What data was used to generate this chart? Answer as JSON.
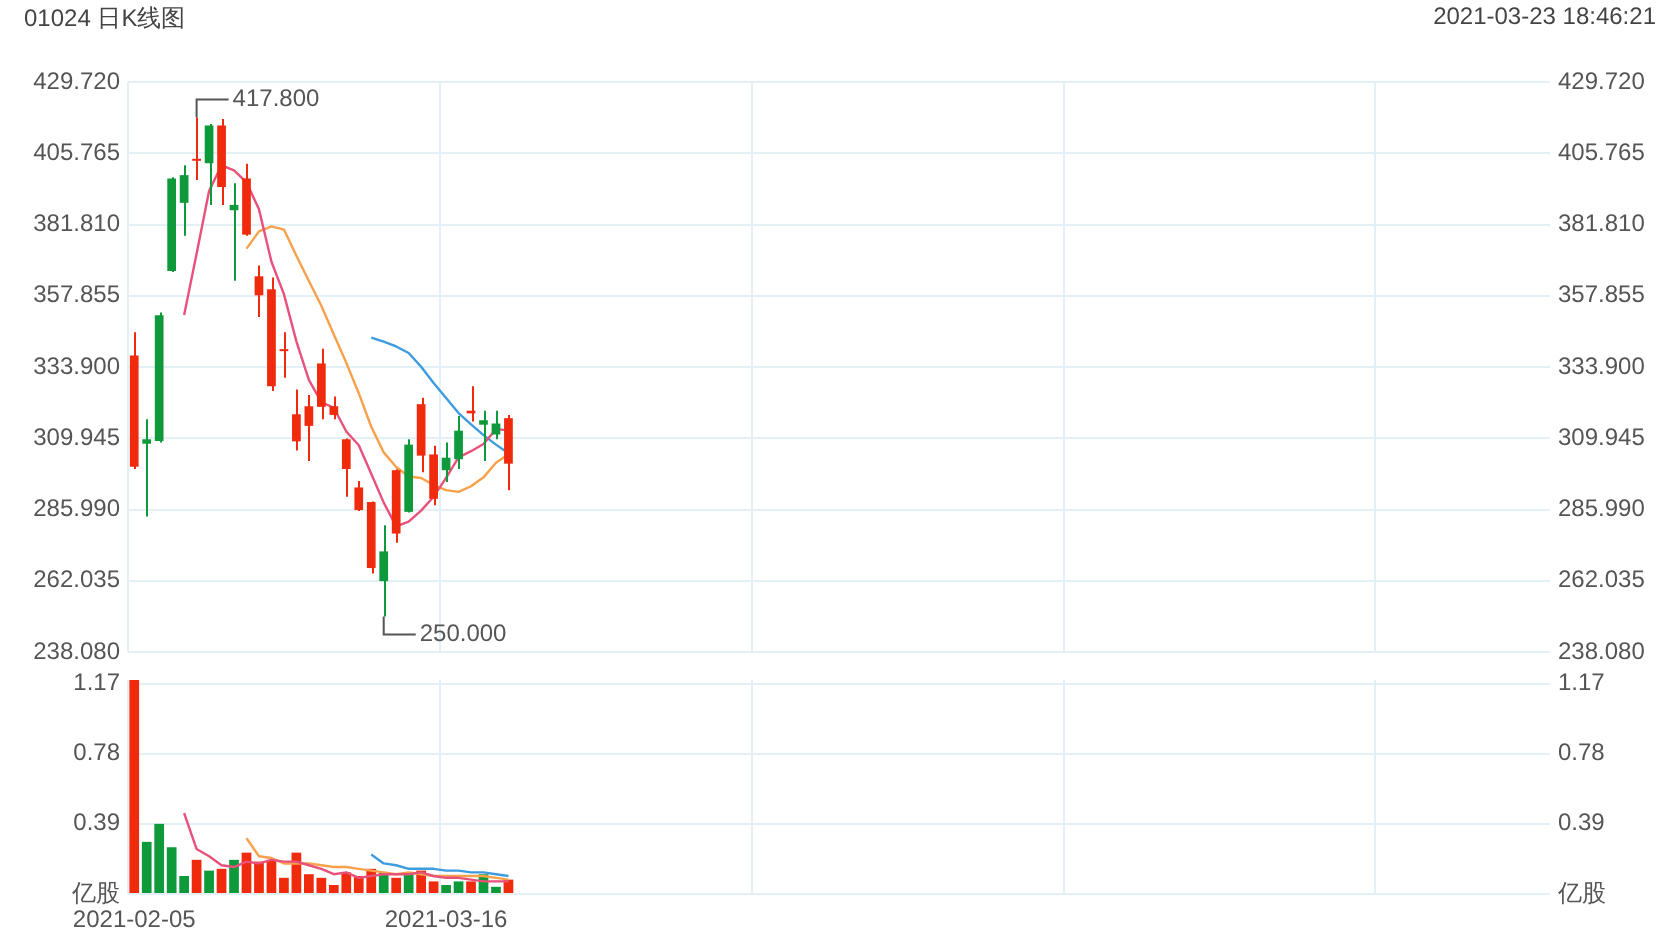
{
  "chart_data": [
    {
      "type": "candlestick",
      "title": "01024 日K线图",
      "subtitle": "2021-03-23 18:46:21",
      "categories": [
        "2021-02-05",
        null,
        null,
        null,
        null,
        null,
        null,
        null,
        null,
        null,
        null,
        null,
        null,
        null,
        null,
        null,
        null,
        null,
        null,
        null,
        null,
        null,
        null,
        null,
        null,
        "2021-03-16",
        null,
        null,
        null,
        null,
        null,
        null,
        null,
        null,
        null,
        null,
        null,
        null,
        null,
        null,
        null,
        null,
        null,
        null,
        null,
        null,
        null,
        null,
        null,
        null,
        null,
        null,
        null,
        null,
        null,
        null,
        null,
        null,
        null,
        null,
        null,
        null,
        null,
        null,
        null,
        null,
        null,
        null,
        null,
        null,
        null,
        null,
        null,
        null,
        null,
        null,
        null,
        null,
        null,
        null,
        null,
        null,
        null,
        null,
        null,
        null,
        null,
        null,
        null,
        null,
        null,
        null,
        null,
        null,
        null,
        null,
        null,
        null,
        null,
        null,
        null,
        null,
        null,
        null,
        null,
        null,
        null,
        null,
        null,
        null,
        null,
        null,
        null,
        null
      ],
      "ohlc": [
        [
          337.8,
          345.6,
          299.6,
          300.4
        ],
        [
          308.1,
          316.3,
          283.6,
          309.6
        ],
        [
          309.0,
          352.2,
          308.5,
          351.3
        ],
        [
          366.2,
          397.7,
          365.8,
          397.3
        ],
        [
          389.1,
          401.7,
          378.0,
          398.4
        ],
        [
          403.9,
          417.8,
          396.8,
          403.5
        ],
        [
          402.4,
          415.6,
          388.4,
          415.1
        ],
        [
          415.1,
          417.3,
          388.4,
          394.4
        ],
        [
          386.6,
          395.7,
          362.9,
          388.4
        ],
        [
          397.3,
          402.2,
          378.0,
          378.4
        ],
        [
          364.4,
          368.0,
          350.7,
          358.0
        ],
        [
          360.0,
          364.0,
          325.8,
          327.4
        ],
        [
          339.9,
          345.6,
          330.3,
          339.7
        ],
        [
          318.0,
          326.3,
          305.8,
          308.9
        ],
        [
          320.7,
          324.5,
          302.3,
          314.1
        ],
        [
          335.1,
          340.0,
          316.3,
          320.5
        ],
        [
          320.7,
          324.0,
          316.3,
          317.8
        ],
        [
          309.6,
          309.9,
          290.3,
          299.6
        ],
        [
          293.4,
          295.6,
          285.5,
          285.8
        ],
        [
          288.5,
          288.7,
          264.5,
          266.3
        ],
        [
          261.9,
          280.7,
          250.0,
          271.9
        ],
        [
          299.2,
          299.5,
          274.8,
          277.9
        ],
        [
          285.2,
          309.6,
          285.0,
          307.8
        ],
        [
          321.4,
          323.6,
          298.5,
          304.1
        ],
        [
          304.5,
          307.4,
          287.4,
          289.6
        ],
        [
          299.2,
          308.5,
          295.2,
          303.4
        ],
        [
          302.9,
          317.4,
          299.6,
          312.5
        ],
        [
          319.2,
          327.4,
          315.6,
          318.3
        ],
        [
          314.5,
          319.2,
          302.3,
          316.0
        ],
        [
          311.2,
          319.2,
          309.6,
          314.9
        ],
        [
          316.7,
          317.8,
          292.5,
          301.4
        ],
        null,
        null,
        null,
        null,
        null,
        null,
        null,
        null,
        null,
        null,
        null,
        null,
        null,
        null,
        null,
        null,
        null,
        null,
        null,
        null,
        null,
        null,
        null,
        null,
        null,
        null,
        null,
        null,
        null,
        null,
        null,
        null,
        null,
        null,
        null,
        null,
        null,
        null,
        null,
        null,
        null,
        null,
        null,
        null,
        null,
        null,
        null,
        null,
        null,
        null,
        null,
        null,
        null,
        null,
        null,
        null,
        null,
        null,
        null,
        null,
        null,
        null,
        null,
        null,
        null,
        null,
        null,
        null,
        null,
        null,
        null,
        null,
        null,
        null,
        null,
        null,
        null,
        null,
        null,
        null,
        null,
        null,
        null
      ],
      "colors": [
        "#f02a0c",
        "#0e9a3a",
        "#0e9a3a",
        "#0e9a3a",
        "#0e9a3a",
        "#f02a0c",
        "#0e9a3a",
        "#f02a0c",
        "#0e9a3a",
        "#f02a0c",
        "#f02a0c",
        "#f02a0c",
        "#f02a0c",
        "#f02a0c",
        "#f02a0c",
        "#f02a0c",
        "#f02a0c",
        "#f02a0c",
        "#f02a0c",
        "#f02a0c",
        "#0e9a3a",
        "#f02a0c",
        "#0e9a3a",
        "#f02a0c",
        "#f02a0c",
        "#0e9a3a",
        "#0e9a3a",
        "#f02a0c",
        "#0e9a3a",
        "#0e9a3a",
        "#f02a0c",
        null,
        null,
        null,
        null,
        null,
        null,
        null,
        null,
        null,
        null,
        null,
        null,
        null,
        null,
        null,
        null,
        null,
        null,
        null,
        null,
        null,
        null,
        null,
        null,
        null,
        null,
        null,
        null,
        null,
        null,
        null,
        null,
        null,
        null,
        null,
        null,
        null,
        null,
        null,
        null,
        null,
        null,
        null,
        null,
        null,
        null,
        null,
        null,
        null,
        null,
        null,
        null,
        null,
        null,
        null,
        null,
        null,
        null,
        null,
        null,
        null,
        null,
        null,
        null,
        null,
        null,
        null,
        null,
        null,
        null,
        null,
        null,
        null,
        null,
        null,
        null,
        null,
        null,
        null,
        null,
        null,
        null,
        null
      ],
      "series": [
        {
          "type": "line",
          "color": "#e8517a",
          "values": [
            null,
            null,
            null,
            null,
            351.4,
            372.0,
            393.1,
            401.7,
            400.0,
            396.0,
            386.9,
            369.3,
            358.4,
            342.5,
            329.6,
            322.1,
            320.2,
            312.2,
            307.6,
            298.0,
            288.3,
            280.3,
            281.9,
            285.6,
            290.3,
            296.6,
            303.5,
            305.6,
            308.0,
            313.0,
            312.6,
            null,
            null,
            null,
            null,
            null,
            null,
            null,
            null,
            null,
            null,
            null,
            null,
            null,
            null,
            null,
            null,
            null,
            null,
            null,
            null,
            null,
            null,
            null,
            null,
            null,
            null,
            null,
            null,
            null,
            null,
            null,
            null,
            null,
            null,
            null,
            null,
            null,
            null,
            null,
            null,
            null,
            null,
            null,
            null,
            null,
            null,
            null,
            null,
            null,
            null,
            null,
            null,
            null,
            null,
            null,
            null,
            null,
            null,
            null,
            null,
            null,
            null,
            null,
            null,
            null,
            null,
            null,
            null,
            null,
            null,
            null,
            null,
            null,
            null,
            null,
            null,
            null,
            null,
            null,
            null,
            null,
            null,
            null
          ]
        },
        {
          "type": "line",
          "color": "#f7a14b",
          "values": [
            null,
            null,
            null,
            null,
            null,
            null,
            null,
            null,
            null,
            373.7,
            379.5,
            381.2,
            380.1,
            371.3,
            362.8,
            354.5,
            344.8,
            335.3,
            325.1,
            313.8,
            305.2,
            300.3,
            297.1,
            296.6,
            294.2,
            292.5,
            291.9,
            293.8,
            296.8,
            301.7,
            304.6,
            null,
            null,
            null,
            null,
            null,
            null,
            null,
            null,
            null,
            null,
            null,
            null,
            null,
            null,
            null,
            null,
            null,
            null,
            null,
            null,
            null,
            null,
            null,
            null,
            null,
            null,
            null,
            null,
            null,
            null,
            null,
            null,
            null,
            null,
            null,
            null,
            null,
            null,
            null,
            null,
            null,
            null,
            null,
            null,
            null,
            null,
            null,
            null,
            null,
            null,
            null,
            null,
            null,
            null,
            null,
            null,
            null,
            null,
            null,
            null,
            null,
            null,
            null,
            null,
            null,
            null,
            null,
            null,
            null,
            null,
            null,
            null,
            null,
            null,
            null,
            null,
            null,
            null,
            null,
            null,
            null,
            null,
            null
          ]
        },
        {
          "type": "line",
          "color": "#3d9be0",
          "values": [
            null,
            null,
            null,
            null,
            null,
            null,
            null,
            null,
            null,
            null,
            null,
            null,
            null,
            null,
            null,
            null,
            null,
            null,
            null,
            343.8,
            342.4,
            340.8,
            338.6,
            334.0,
            328.5,
            323.5,
            318.4,
            314.6,
            311.0,
            307.8,
            304.9,
            null,
            null,
            null,
            null,
            null,
            null,
            null,
            null,
            null,
            null,
            null,
            null,
            null,
            null,
            null,
            null,
            null,
            null,
            null,
            null,
            null,
            null,
            null,
            null,
            null,
            null,
            null,
            null,
            null,
            null,
            null,
            null,
            null,
            null,
            null,
            null,
            null,
            null,
            null,
            null,
            null,
            null,
            null,
            null,
            null,
            null,
            null,
            null,
            null,
            null,
            null,
            null,
            null,
            null,
            null,
            null,
            null,
            null,
            null,
            null,
            null,
            null,
            null,
            null,
            null,
            null,
            null,
            null,
            null,
            null,
            null,
            null,
            null,
            null,
            null,
            null,
            null,
            null,
            null,
            null,
            null,
            null,
            null
          ]
        }
      ],
      "ylim": [
        238.08,
        429.72
      ],
      "yticks": [
        {
          "value": 238.08,
          "label": "238.080"
        },
        262.035,
        {
          "value": 285.99,
          "label": "285.990"
        },
        309.945,
        {
          "value": 333.9,
          "label": "333.900"
        },
        357.855,
        {
          "value": 381.81,
          "label": "381.810"
        },
        405.765,
        {
          "value": 429.72,
          "label": "429.720"
        }
      ],
      "y2lim": [
        238.08,
        429.72
      ],
      "y2ticks": [
        {
          "value": 238.08,
          "label": "238.080"
        },
        262.035,
        {
          "value": 285.99,
          "label": "285.990"
        },
        309.945,
        {
          "value": 333.9,
          "label": "333.900"
        },
        357.855,
        {
          "value": 381.81,
          "label": "381.810"
        },
        405.765,
        {
          "value": 429.72,
          "label": "429.720"
        }
      ],
      "annotations": [
        "417.800",
        "250.000"
      ],
      "grid": true,
      "tick_labels": "y"
    },
    {
      "type": "bar",
      "categories": [
        "2021-02-05",
        null,
        null,
        null,
        null,
        null,
        null,
        null,
        null,
        null,
        null,
        null,
        null,
        null,
        null,
        null,
        null,
        null,
        null,
        null,
        null,
        null,
        null,
        null,
        null,
        "2021-03-16",
        null,
        null,
        null,
        null,
        null,
        null,
        null,
        null,
        null,
        null,
        null,
        null,
        null,
        null,
        null,
        null,
        null,
        null,
        null,
        null,
        null,
        null,
        null,
        null,
        null,
        null,
        null,
        null,
        null,
        null,
        null,
        null,
        null,
        null,
        null,
        null,
        null,
        null,
        null,
        null,
        null,
        null,
        null,
        null,
        null,
        null,
        null,
        null,
        null,
        null,
        null,
        null,
        null,
        null,
        null,
        null,
        null,
        null,
        null,
        null,
        null,
        null,
        null,
        null,
        null,
        null,
        null,
        null,
        null,
        null,
        null,
        null,
        null,
        null,
        null,
        null,
        null,
        null,
        null,
        null,
        null,
        null,
        null,
        null,
        null,
        null,
        null,
        null
      ],
      "series": [
        {
          "type": "bar",
          "colors": [
            "#f02a0c",
            "#0e9a3a",
            "#0e9a3a",
            "#0e9a3a",
            "#0e9a3a",
            "#f02a0c",
            "#0e9a3a",
            "#f02a0c",
            "#0e9a3a",
            "#f02a0c",
            "#f02a0c",
            "#f02a0c",
            "#f02a0c",
            "#f02a0c",
            "#f02a0c",
            "#f02a0c",
            "#f02a0c",
            "#f02a0c",
            "#f02a0c",
            "#f02a0c",
            "#0e9a3a",
            "#f02a0c",
            "#0e9a3a",
            "#f02a0c",
            "#f02a0c",
            "#0e9a3a",
            "#0e9a3a",
            "#f02a0c",
            "#0e9a3a",
            "#0e9a3a",
            "#f02a0c",
            null,
            null,
            null,
            null,
            null,
            null,
            null,
            null,
            null,
            null,
            null,
            null,
            null,
            null,
            null,
            null,
            null,
            null,
            null,
            null,
            null,
            null,
            null,
            null,
            null,
            null,
            null,
            null,
            null,
            null,
            null,
            null,
            null,
            null,
            null,
            null,
            null,
            null,
            null,
            null,
            null,
            null,
            null,
            null,
            null,
            null,
            null,
            null,
            null,
            null,
            null,
            null,
            null,
            null,
            null,
            null,
            null,
            null,
            null,
            null,
            null,
            null,
            null,
            null,
            null,
            null,
            null,
            null,
            null,
            null,
            null,
            null,
            null,
            null,
            null,
            null,
            null,
            null,
            null,
            null,
            null,
            null,
            null
          ],
          "values": [
            1.19,
            0.29,
            0.39,
            0.26,
            0.1,
            0.19,
            0.13,
            0.14,
            0.19,
            0.23,
            0.18,
            0.19,
            0.09,
            0.23,
            0.11,
            0.09,
            0.05,
            0.12,
            0.1,
            0.14,
            0.12,
            0.09,
            0.11,
            0.13,
            0.07,
            0.05,
            0.07,
            0.07,
            0.11,
            0.04,
            0.08,
            null,
            null,
            null,
            null,
            null,
            null,
            null,
            null,
            null,
            null,
            null,
            null,
            null,
            null,
            null,
            null,
            null,
            null,
            null,
            null,
            null,
            null,
            null,
            null,
            null,
            null,
            null,
            null,
            null,
            null,
            null,
            null,
            null,
            null,
            null,
            null,
            null,
            null,
            null,
            null,
            null,
            null,
            null,
            null,
            null,
            null,
            null,
            null,
            null,
            null,
            null,
            null,
            null,
            null,
            null,
            null,
            null,
            null,
            null,
            null,
            null,
            null,
            null,
            null,
            null,
            null,
            null,
            null,
            null,
            null,
            null,
            null,
            null,
            null,
            null,
            null,
            null,
            null,
            null,
            null,
            null,
            null,
            null
          ]
        },
        {
          "type": "line",
          "color": "#e8517a",
          "values": [
            null,
            null,
            null,
            null,
            0.45,
            0.25,
            0.21,
            0.16,
            0.15,
            0.18,
            0.17,
            0.19,
            0.18,
            0.18,
            0.16,
            0.14,
            0.11,
            0.12,
            0.09,
            0.1,
            0.11,
            0.11,
            0.11,
            0.12,
            0.1,
            0.09,
            0.09,
            0.08,
            0.07,
            0.07,
            0.07,
            null,
            null,
            null,
            null,
            null,
            null,
            null,
            null,
            null,
            null,
            null,
            null,
            null,
            null,
            null,
            null,
            null,
            null,
            null,
            null,
            null,
            null,
            null,
            null,
            null,
            null,
            null,
            null,
            null,
            null,
            null,
            null,
            null,
            null,
            null,
            null,
            null,
            null,
            null,
            null,
            null,
            null,
            null,
            null,
            null,
            null,
            null,
            null,
            null,
            null,
            null,
            null,
            null,
            null,
            null,
            null,
            null,
            null,
            null,
            null,
            null,
            null,
            null,
            null,
            null,
            null,
            null,
            null,
            null,
            null,
            null,
            null,
            null,
            null,
            null,
            null,
            null,
            null,
            null,
            null,
            null,
            null,
            null
          ]
        },
        {
          "type": "line",
          "color": "#f7a14b",
          "values": [
            null,
            null,
            null,
            null,
            null,
            null,
            null,
            null,
            null,
            0.31,
            0.21,
            0.2,
            0.17,
            0.17,
            0.17,
            0.16,
            0.15,
            0.15,
            0.14,
            0.13,
            0.12,
            0.11,
            0.12,
            0.11,
            0.1,
            0.1,
            0.1,
            0.1,
            0.1,
            0.09,
            0.08,
            null,
            null,
            null,
            null,
            null,
            null,
            null,
            null,
            null,
            null,
            null,
            null,
            null,
            null,
            null,
            null,
            null,
            null,
            null,
            null,
            null,
            null,
            null,
            null,
            null,
            null,
            null,
            null,
            null,
            null,
            null,
            null,
            null,
            null,
            null,
            null,
            null,
            null,
            null,
            null,
            null,
            null,
            null,
            null,
            null,
            null,
            null,
            null,
            null,
            null,
            null,
            null,
            null,
            null,
            null,
            null,
            null,
            null,
            null,
            null,
            null,
            null,
            null,
            null,
            null,
            null,
            null,
            null,
            null,
            null,
            null,
            null,
            null,
            null,
            null,
            null,
            null,
            null,
            null,
            null,
            null,
            null,
            null
          ]
        },
        {
          "type": "line",
          "color": "#3d9be0",
          "values": [
            null,
            null,
            null,
            null,
            null,
            null,
            null,
            null,
            null,
            null,
            null,
            null,
            null,
            null,
            null,
            null,
            null,
            null,
            null,
            0.22,
            0.17,
            0.16,
            0.14,
            0.14,
            0.14,
            0.13,
            0.13,
            0.12,
            0.12,
            0.11,
            0.1,
            null,
            null,
            null,
            null,
            null,
            null,
            null,
            null,
            null,
            null,
            null,
            null,
            null,
            null,
            null,
            null,
            null,
            null,
            null,
            null,
            null,
            null,
            null,
            null,
            null,
            null,
            null,
            null,
            null,
            null,
            null,
            null,
            null,
            null,
            null,
            null,
            null,
            null,
            null,
            null,
            null,
            null,
            null,
            null,
            null,
            null,
            null,
            null,
            null,
            null,
            null,
            null,
            null,
            null,
            null,
            null,
            null,
            null,
            null,
            null,
            null,
            null,
            null,
            null,
            null,
            null,
            null,
            null,
            null,
            null,
            null,
            null,
            null,
            null,
            null,
            null,
            null,
            null,
            null,
            null,
            null,
            null,
            null
          ]
        }
      ],
      "ylim": [
        0,
        1.19
      ],
      "yticks": [
        {
          "value": 0,
          "label": "亿股"
        },
        0.39,
        0.78,
        1.17
      ],
      "y2lim": [
        0,
        1.19
      ],
      "y2ticks": [
        {
          "value": 0,
          "label": "亿股"
        },
        0.39,
        0.78,
        1.17
      ],
      "grid": true
    }
  ]
}
